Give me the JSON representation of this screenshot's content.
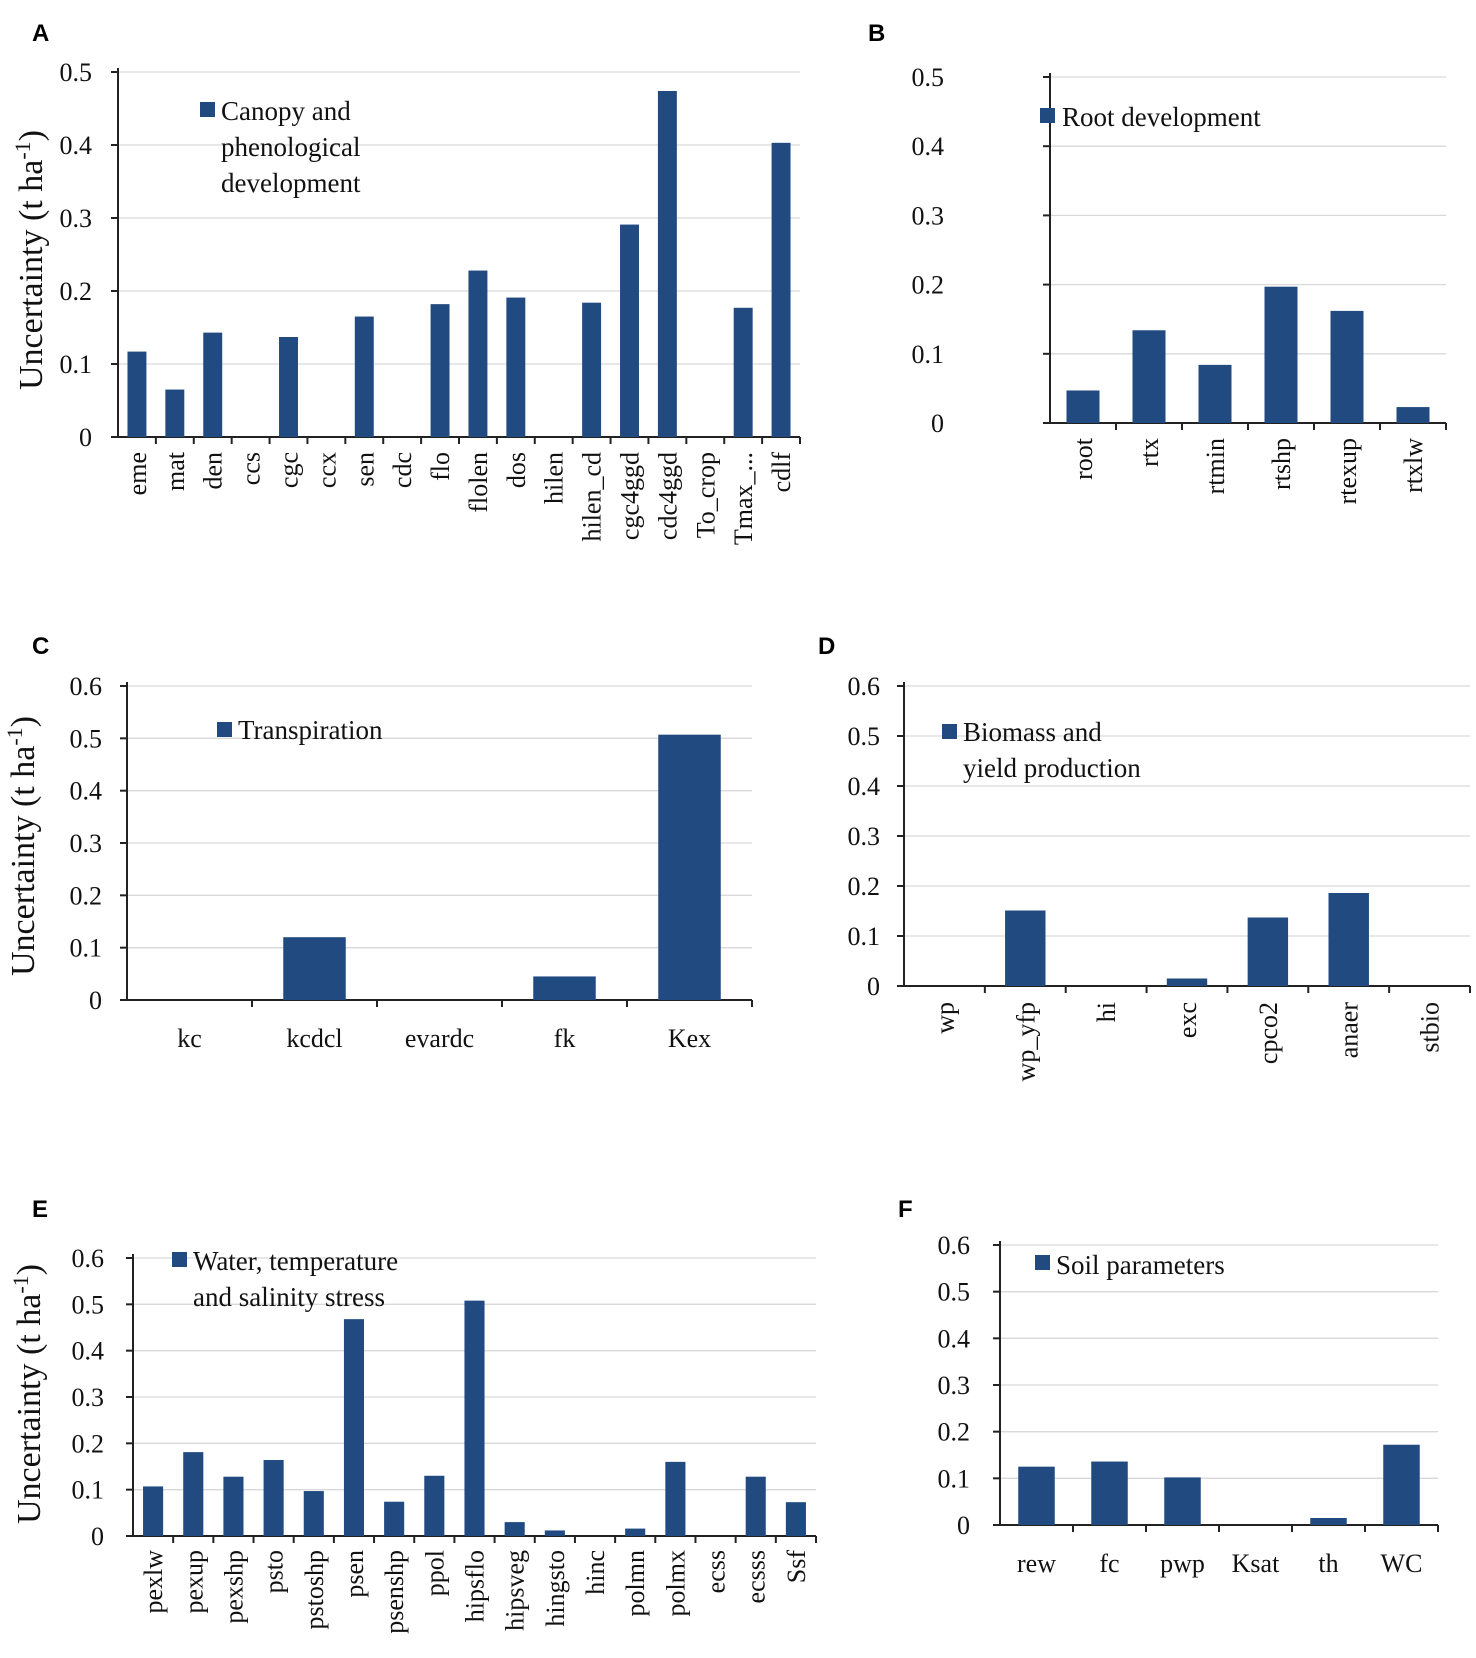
{
  "colors": {
    "bar": "#214a80",
    "grid": "#d9d9d9",
    "axis": "#222222"
  },
  "chart_data": [
    {
      "panel": "A",
      "type": "bar",
      "legend": [
        "Canopy and",
        "phenological",
        "development"
      ],
      "ylabel": "Uncertainty (t ha",
      "ylabel_sup": "-1",
      "ylabel_close": ")",
      "yticks": [
        "0",
        "0.1",
        "0.2",
        "0.3",
        "0.4",
        "0.5"
      ],
      "ylim": [
        0,
        0.5
      ],
      "categories": [
        "eme",
        "mat",
        "den",
        "ccs",
        "cgc",
        "ccx",
        "sen",
        "cdc",
        "flo",
        "flolen",
        "dos",
        "hilen",
        "hilen_cd",
        "cgc4ggd",
        "cdc4ggd",
        "To_crop",
        "Tmax_...",
        "cdlf"
      ],
      "values": [
        0.117,
        0.065,
        0.143,
        0,
        0.137,
        0,
        0.165,
        0,
        0.182,
        0.228,
        0.191,
        0,
        0.184,
        0.291,
        0.474,
        0,
        0.177,
        0.403
      ]
    },
    {
      "panel": "B",
      "type": "bar",
      "legend": [
        "Root development"
      ],
      "yticks": [
        "0",
        "0.1",
        "0.2",
        "0.3",
        "0.4",
        "0.5"
      ],
      "ylim": [
        0,
        0.5
      ],
      "categories": [
        "root",
        "rtx",
        "rtmin",
        "rtshp",
        "rtexup",
        "rtxlw"
      ],
      "values": [
        0.047,
        0.134,
        0.084,
        0.197,
        0.162,
        0.023
      ]
    },
    {
      "panel": "C",
      "type": "bar",
      "legend": [
        "Transpiration"
      ],
      "ylabel": "Uncertainty (t ha",
      "ylabel_sup": "-1",
      "ylabel_close": ")",
      "yticks": [
        "0",
        "0.1",
        "0.2",
        "0.3",
        "0.4",
        "0.5",
        "0.6"
      ],
      "ylim": [
        0,
        0.6
      ],
      "categories": [
        "kc",
        "kcdcl",
        "evardc",
        "fk",
        "Kex"
      ],
      "values": [
        0,
        0.12,
        0,
        0.045,
        0.507
      ]
    },
    {
      "panel": "D",
      "type": "bar",
      "legend": [
        "Biomass and",
        "yield production"
      ],
      "yticks": [
        "0",
        "0.1",
        "0.2",
        "0.3",
        "0.4",
        "0.5",
        "0.6"
      ],
      "ylim": [
        0,
        0.6
      ],
      "categories": [
        "wp",
        "wp_yfp",
        "hi",
        "exc",
        "cpco2",
        "anaer",
        "stbio"
      ],
      "values": [
        0,
        0.151,
        0,
        0.015,
        0.137,
        0.186,
        0
      ]
    },
    {
      "panel": "E",
      "type": "bar",
      "legend": [
        "Water, temperature",
        "and salinity stress"
      ],
      "ylabel": "Uncertainty (t ha",
      "ylabel_sup": "-1",
      "ylabel_close": ")",
      "yticks": [
        "0",
        "0.1",
        "0.2",
        "0.3",
        "0.4",
        "0.5",
        "0.6"
      ],
      "ylim": [
        0,
        0.6
      ],
      "categories": [
        "pexlw",
        "pexup",
        "pexshp",
        "psto",
        "pstoshp",
        "psen",
        "psenshp",
        "ppol",
        "hipsflo",
        "hipsveg",
        "hingsto",
        "hinc",
        "polmn",
        "polmx",
        "ecss",
        "ecsss",
        "Ssf"
      ],
      "values": [
        0.107,
        0.181,
        0.128,
        0.164,
        0.097,
        0.468,
        0.074,
        0.13,
        0.508,
        0.03,
        0.012,
        0,
        0.016,
        0.16,
        0,
        0.128,
        0.073
      ]
    },
    {
      "panel": "F",
      "type": "bar",
      "legend": [
        "Soil parameters"
      ],
      "yticks": [
        "0",
        "0.1",
        "0.2",
        "0.3",
        "0.4",
        "0.5",
        "0.6"
      ],
      "ylim": [
        0,
        0.6
      ],
      "categories": [
        "rew",
        "fc",
        "pwp",
        "Ksat",
        "th",
        "WC"
      ],
      "values": [
        0.125,
        0.136,
        0.102,
        0,
        0.015,
        0.172
      ]
    }
  ]
}
